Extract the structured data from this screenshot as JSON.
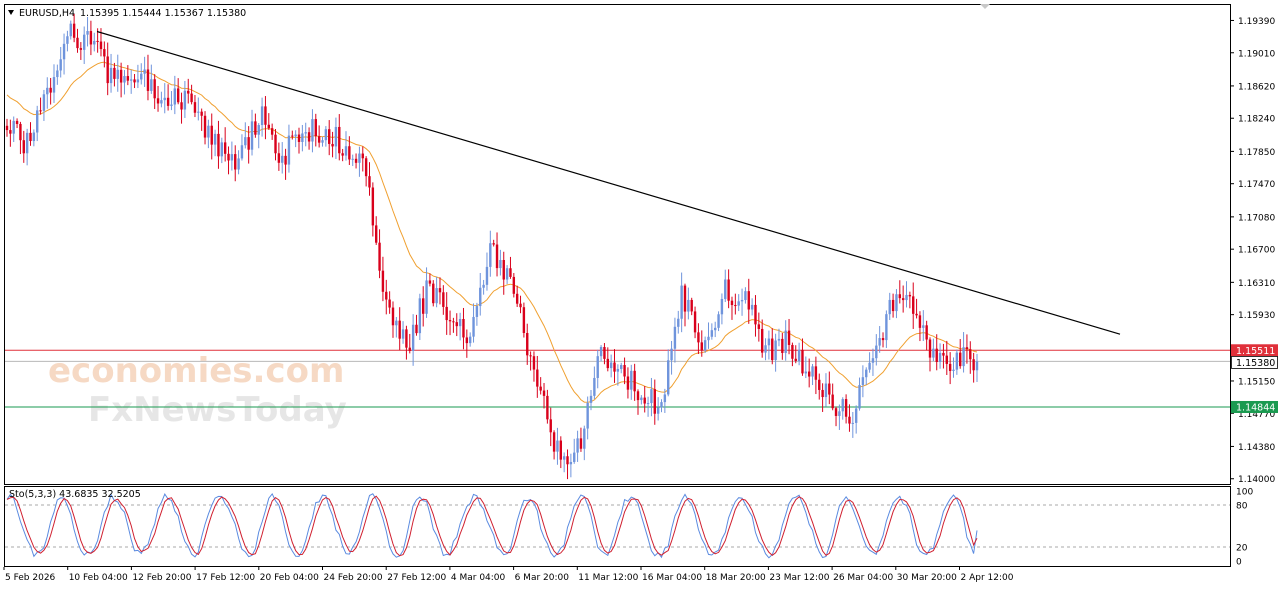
{
  "header": {
    "symbol_label": "EURUSD,H4",
    "ohlc": "1.15395 1.15444 1.15367 1.15380"
  },
  "watermark": {
    "line1": "economies.com",
    "line2": "FxNewsToday"
  },
  "colors": {
    "bull": "#6f94dc",
    "bear": "#d9001b",
    "ma": "#f0a030",
    "trendline": "#000000",
    "resistance": "#e0303a",
    "support": "#1a9a50",
    "sto_main": "#5b8be0",
    "sto_signal": "#d02030",
    "border": "#000000"
  },
  "price_axis": {
    "ticks": [
      "1.19390",
      "1.19010",
      "1.18620",
      "1.18240",
      "1.17850",
      "1.17470",
      "1.17080",
      "1.16700",
      "1.16310",
      "1.15930",
      "1.15150",
      "1.14770",
      "1.14380",
      "1.14000"
    ],
    "resistance_tag": "1.15511",
    "current_tag": "1.15380",
    "support_tag": "1.14844"
  },
  "indicator": {
    "label": "Sto(5,3,3) 43.6835 32.5205",
    "levels": [
      "100",
      "80",
      "20",
      "0"
    ]
  },
  "time_axis": {
    "labels": [
      "5 Feb 2026",
      "10 Feb 04:00",
      "12 Feb 20:00",
      "17 Feb 12:00",
      "20 Feb 04:00",
      "24 Feb 20:00",
      "27 Feb 12:00",
      "4 Mar 04:00",
      "6 Mar 20:00",
      "11 Mar 12:00",
      "16 Mar 04:00",
      "18 Mar 20:00",
      "23 Mar 12:00",
      "26 Mar 04:00",
      "30 Mar 20:00",
      "2 Apr 12:00"
    ]
  },
  "chart_data": {
    "type": "candlestick",
    "symbol": "EURUSD",
    "timeframe": "H4",
    "y_range": [
      1.1395,
      1.1956
    ],
    "current_price": 1.1538,
    "horizontal_levels": [
      1.15511,
      1.14844
    ],
    "trendline": [
      {
        "x": "10 Feb 04:00",
        "y": 1.1926
      },
      {
        "x": "3 Apr 00:00",
        "y": 1.157
      }
    ],
    "closes_path": [
      1.1822,
      1.179,
      1.1865,
      1.192,
      1.1912,
      1.187,
      1.1878,
      1.1855,
      1.185,
      1.183,
      1.179,
      1.177,
      1.183,
      1.178,
      1.1805,
      1.1812,
      1.179,
      1.1772,
      1.16,
      1.155,
      1.163,
      1.1582,
      1.1572,
      1.167,
      1.162,
      1.153,
      1.144,
      1.1425,
      1.154,
      1.1535,
      1.15,
      1.1485,
      1.162,
      1.155,
      1.162,
      1.161,
      1.155,
      1.156,
      1.1525,
      1.15,
      1.1465,
      1.154,
      1.161,
      1.16,
      1.1535,
      1.1543,
      1.1538
    ],
    "stochastic": {
      "params": "5,3,3",
      "main": 43.6835,
      "signal": 32.5205,
      "levels": [
        80,
        20
      ],
      "range": [
        0,
        100
      ]
    }
  }
}
